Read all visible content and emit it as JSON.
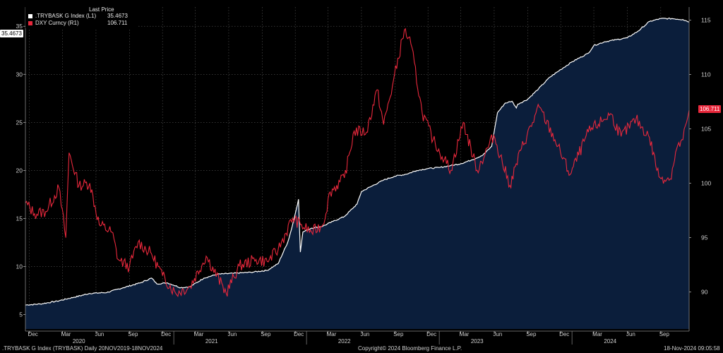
{
  "legend": {
    "header": "Last Price",
    "items": [
      {
        "name": ".TRYBASK G Index  (L1)",
        "value": "35.4673",
        "color": "#ffffff"
      },
      {
        "name": "DXY Curncy  (R1)",
        "value": "106.711",
        "color": "#e8283c"
      }
    ]
  },
  "footer": {
    "left": ".TRYBASK G Index (TRYBASK)  Daily 20NOV2019-18NOV2024",
    "center": "Copyright© 2024 Bloomberg Finance L.P.",
    "right": "18-Nov-2024 09:05:58"
  },
  "colors": {
    "background": "#000000",
    "area_fill": "#0b1e3b",
    "left_series": "#ffffff",
    "right_series": "#e8283c",
    "grid": "#555555"
  },
  "chart_data": {
    "type": "line",
    "x_range": [
      "2019-11-20",
      "2024-11-18"
    ],
    "left_axis": {
      "min": 3.5,
      "max": 37,
      "ticks": [
        5,
        10,
        15,
        20,
        25,
        30,
        35
      ],
      "last_label": "35.4673"
    },
    "right_axis": {
      "min": 86.6,
      "max": 116.2,
      "ticks": [
        90,
        95,
        100,
        105,
        110,
        115
      ],
      "last_label": "106.711"
    },
    "x_month_labels": [
      {
        "date": "2019-12-01",
        "label": "Dec"
      },
      {
        "date": "2020-03-01",
        "label": "Mar"
      },
      {
        "date": "2020-06-01",
        "label": "Jun"
      },
      {
        "date": "2020-09-01",
        "label": "Sep"
      },
      {
        "date": "2020-12-01",
        "label": "Dec"
      },
      {
        "date": "2021-03-01",
        "label": "Mar"
      },
      {
        "date": "2021-06-01",
        "label": "Jun"
      },
      {
        "date": "2021-09-01",
        "label": "Sep"
      },
      {
        "date": "2021-12-01",
        "label": "Dec"
      },
      {
        "date": "2022-03-01",
        "label": "Mar"
      },
      {
        "date": "2022-06-01",
        "label": "Jun"
      },
      {
        "date": "2022-09-01",
        "label": "Sep"
      },
      {
        "date": "2022-12-01",
        "label": "Dec"
      },
      {
        "date": "2023-03-01",
        "label": "Mar"
      },
      {
        "date": "2023-06-01",
        "label": "Jun"
      },
      {
        "date": "2023-09-01",
        "label": "Sep"
      },
      {
        "date": "2023-12-01",
        "label": "Dec"
      },
      {
        "date": "2024-03-01",
        "label": "Mar"
      },
      {
        "date": "2024-06-01",
        "label": "Jun"
      },
      {
        "date": "2024-09-01",
        "label": "Sep"
      }
    ],
    "x_year_labels": [
      {
        "date": "2020-04-15",
        "label": "2020"
      },
      {
        "date": "2021-04-15",
        "label": "2021"
      },
      {
        "date": "2022-04-15",
        "label": "2022"
      },
      {
        "date": "2023-04-15",
        "label": "2023"
      },
      {
        "date": "2024-04-15",
        "label": "2024"
      }
    ],
    "series": [
      {
        "name": ".TRYBASK G Index  (L1)",
        "axis": "left",
        "style": "area",
        "points": [
          [
            "2019-11-20",
            6.0
          ],
          [
            "2019-12-31",
            6.1
          ],
          [
            "2020-02-15",
            6.4
          ],
          [
            "2020-04-01",
            6.8
          ],
          [
            "2020-05-15",
            7.2
          ],
          [
            "2020-07-01",
            7.3
          ],
          [
            "2020-08-15",
            7.8
          ],
          [
            "2020-10-01",
            8.3
          ],
          [
            "2020-11-01",
            8.8
          ],
          [
            "2020-11-15",
            8.2
          ],
          [
            "2020-12-15",
            8.3
          ],
          [
            "2021-01-20",
            7.8
          ],
          [
            "2021-02-15",
            7.9
          ],
          [
            "2021-03-25",
            8.8
          ],
          [
            "2021-05-01",
            9.2
          ],
          [
            "2021-06-15",
            9.3
          ],
          [
            "2021-08-01",
            9.4
          ],
          [
            "2021-09-15",
            9.6
          ],
          [
            "2021-10-15",
            10.3
          ],
          [
            "2021-11-10",
            12.5
          ],
          [
            "2021-11-20",
            13.8
          ],
          [
            "2021-12-01",
            15.5
          ],
          [
            "2021-12-10",
            17.0
          ],
          [
            "2021-12-15",
            11.5
          ],
          [
            "2021-12-22",
            13.6
          ],
          [
            "2022-01-15",
            14.0
          ],
          [
            "2022-02-15",
            14.2
          ],
          [
            "2022-03-15",
            14.7
          ],
          [
            "2022-04-15",
            15.2
          ],
          [
            "2022-05-20",
            16.5
          ],
          [
            "2022-06-01",
            17.8
          ],
          [
            "2022-07-01",
            18.4
          ],
          [
            "2022-08-01",
            19.0
          ],
          [
            "2022-09-01",
            19.4
          ],
          [
            "2022-10-01",
            19.6
          ],
          [
            "2022-11-01",
            20.0
          ],
          [
            "2022-12-01",
            20.2
          ],
          [
            "2023-01-01",
            20.3
          ],
          [
            "2023-02-01",
            20.5
          ],
          [
            "2023-03-01",
            20.7
          ],
          [
            "2023-04-01",
            21.1
          ],
          [
            "2023-05-01",
            21.6
          ],
          [
            "2023-05-25",
            22.5
          ],
          [
            "2023-06-10",
            26.0
          ],
          [
            "2023-07-01",
            27.0
          ],
          [
            "2023-07-20",
            27.2
          ],
          [
            "2023-08-01",
            26.5
          ],
          [
            "2023-08-05",
            26.9
          ],
          [
            "2023-09-01",
            27.4
          ],
          [
            "2023-10-01",
            28.5
          ],
          [
            "2023-11-01",
            29.7
          ],
          [
            "2023-12-01",
            30.5
          ],
          [
            "2024-01-01",
            31.3
          ],
          [
            "2024-02-15",
            32.2
          ],
          [
            "2024-03-01",
            33.0
          ],
          [
            "2024-04-01",
            33.4
          ],
          [
            "2024-05-01",
            33.6
          ],
          [
            "2024-06-01",
            33.8
          ],
          [
            "2024-07-01",
            34.5
          ],
          [
            "2024-08-01",
            35.5
          ],
          [
            "2024-09-01",
            35.8
          ],
          [
            "2024-10-01",
            35.8
          ],
          [
            "2024-11-01",
            35.7
          ],
          [
            "2024-11-18",
            35.4673
          ]
        ]
      },
      {
        "name": "DXY Curncy  (R1)",
        "axis": "right",
        "style": "line",
        "points": [
          [
            "2019-11-20",
            98.2
          ],
          [
            "2019-12-15",
            97.2
          ],
          [
            "2020-01-15",
            97.4
          ],
          [
            "2020-02-20",
            99.6
          ],
          [
            "2020-03-10",
            95.0
          ],
          [
            "2020-03-19",
            102.8
          ],
          [
            "2020-04-15",
            99.8
          ],
          [
            "2020-05-15",
            100.0
          ],
          [
            "2020-06-10",
            96.2
          ],
          [
            "2020-07-15",
            95.5
          ],
          [
            "2020-08-01",
            93.0
          ],
          [
            "2020-09-01",
            92.3
          ],
          [
            "2020-09-25",
            94.6
          ],
          [
            "2020-11-01",
            93.5
          ],
          [
            "2020-12-01",
            91.5
          ],
          [
            "2021-01-06",
            89.9
          ],
          [
            "2021-02-15",
            90.5
          ],
          [
            "2021-03-31",
            93.3
          ],
          [
            "2021-05-25",
            89.9
          ],
          [
            "2021-06-30",
            92.4
          ],
          [
            "2021-08-15",
            93.0
          ],
          [
            "2021-09-15",
            92.8
          ],
          [
            "2021-10-15",
            93.9
          ],
          [
            "2021-11-24",
            96.8
          ],
          [
            "2021-12-15",
            96.2
          ],
          [
            "2022-01-15",
            95.5
          ],
          [
            "2022-02-15",
            96.2
          ],
          [
            "2022-03-07",
            99.2
          ],
          [
            "2022-04-15",
            100.5
          ],
          [
            "2022-05-12",
            104.8
          ],
          [
            "2022-06-15",
            104.7
          ],
          [
            "2022-07-14",
            108.6
          ],
          [
            "2022-08-01",
            105.4
          ],
          [
            "2022-08-25",
            108.9
          ],
          [
            "2022-09-27",
            114.1
          ],
          [
            "2022-10-15",
            112.8
          ],
          [
            "2022-11-15",
            106.5
          ],
          [
            "2022-12-15",
            104.0
          ],
          [
            "2023-01-15",
            102.2
          ],
          [
            "2023-02-02",
            101.2
          ],
          [
            "2023-03-08",
            105.6
          ],
          [
            "2023-04-15",
            101.2
          ],
          [
            "2023-05-31",
            104.4
          ],
          [
            "2023-07-14",
            99.8
          ],
          [
            "2023-08-15",
            103.2
          ],
          [
            "2023-10-03",
            107.0
          ],
          [
            "2023-11-15",
            104.0
          ],
          [
            "2023-12-27",
            100.8
          ],
          [
            "2024-02-15",
            104.7
          ],
          [
            "2024-04-16",
            106.4
          ],
          [
            "2024-05-15",
            104.3
          ],
          [
            "2024-06-25",
            105.9
          ],
          [
            "2024-08-01",
            104.2
          ],
          [
            "2024-08-27",
            100.6
          ],
          [
            "2024-09-27",
            100.4
          ],
          [
            "2024-10-15",
            103.2
          ],
          [
            "2024-11-01",
            104.0
          ],
          [
            "2024-11-11",
            105.6
          ],
          [
            "2024-11-18",
            106.711
          ]
        ]
      }
    ]
  }
}
